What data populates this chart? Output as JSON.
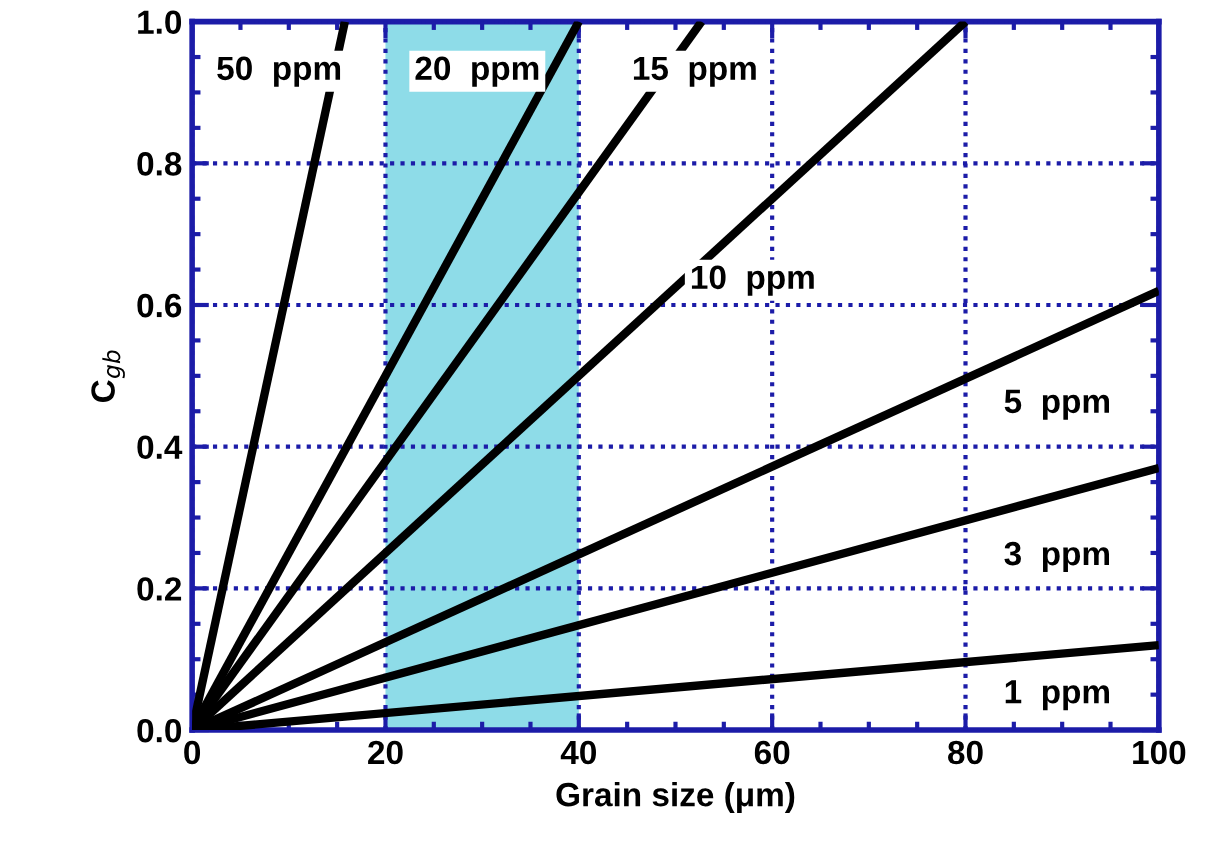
{
  "chart_data": {
    "type": "line",
    "xlabel": "Grain size (μm)",
    "ylabel": "C$_{gb}$",
    "series": [
      {
        "name": "50  ppm",
        "color": "#000000",
        "x": [
          0,
          15.8
        ],
        "values": [
          0,
          1.0
        ]
      },
      {
        "name": "20  ppm",
        "color": "#000000",
        "x": [
          0,
          40
        ],
        "values": [
          0,
          1.0
        ]
      },
      {
        "name": "15  ppm",
        "color": "#000000",
        "x": [
          0,
          52.7
        ],
        "values": [
          0,
          1.0
        ]
      },
      {
        "name": "10  ppm",
        "color": "#000000",
        "x": [
          0,
          80
        ],
        "values": [
          0,
          1.0
        ]
      },
      {
        "name": "5  ppm",
        "color": "#000000",
        "x": [
          0,
          100
        ],
        "values": [
          0,
          0.62
        ]
      },
      {
        "name": "3  ppm",
        "color": "#000000",
        "x": [
          0,
          100
        ],
        "values": [
          0,
          0.37
        ]
      },
      {
        "name": "1  ppm",
        "color": "#000000",
        "x": [
          0,
          100
        ],
        "values": [
          0,
          0.12
        ]
      }
    ],
    "bands": [
      {
        "axis": "x",
        "from": 20,
        "to": 40,
        "color": "#8edce8"
      }
    ],
    "xlim": [
      0,
      100
    ],
    "ylim": [
      0,
      1.0
    ],
    "xticks": [
      0,
      20,
      40,
      60,
      80,
      100
    ],
    "yticks": [
      {
        "value": 0,
        "label": "0.0"
      },
      0.2,
      0.4,
      0.6,
      0.8,
      {
        "value": 1.0,
        "label": "1.0"
      }
    ],
    "grid": true,
    "marker": "none",
    "line_style": "solid"
  }
}
